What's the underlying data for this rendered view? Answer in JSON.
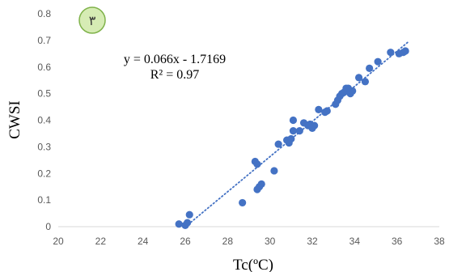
{
  "chart_data": {
    "type": "scatter",
    "badge": "٣",
    "xlabel": "Tc(ºC)",
    "ylabel": "CWSI",
    "equation": "y = 0.066x - 1.7169",
    "r2": "R² = 0.97",
    "xlim": [
      20,
      38
    ],
    "ylim": [
      0,
      0.8
    ],
    "xticks": [
      "20",
      "22",
      "24",
      "26",
      "28",
      "30",
      "32",
      "34",
      "36",
      "38"
    ],
    "yticks": [
      "0",
      "0.1",
      "0.2",
      "0.3",
      "0.4",
      "0.5",
      "0.6",
      "0.7",
      "0.8"
    ],
    "trendline": {
      "slope": 0.066,
      "intercept": -1.7169,
      "x_range": [
        26.0,
        36.5
      ]
    },
    "marker_color": "#4472C4",
    "badge_fill": "#d6ecb4",
    "badge_stroke": "#7fb24a",
    "points": [
      [
        25.7,
        0.01
      ],
      [
        26.0,
        0.005
      ],
      [
        26.1,
        0.015
      ],
      [
        26.2,
        0.045
      ],
      [
        28.7,
        0.09
      ],
      [
        29.3,
        0.245
      ],
      [
        29.4,
        0.235
      ],
      [
        29.4,
        0.14
      ],
      [
        29.5,
        0.15
      ],
      [
        29.6,
        0.16
      ],
      [
        30.2,
        0.21
      ],
      [
        30.4,
        0.31
      ],
      [
        30.8,
        0.325
      ],
      [
        30.9,
        0.315
      ],
      [
        31.0,
        0.33
      ],
      [
        31.1,
        0.36
      ],
      [
        31.1,
        0.4
      ],
      [
        31.4,
        0.36
      ],
      [
        31.6,
        0.39
      ],
      [
        31.8,
        0.38
      ],
      [
        31.9,
        0.385
      ],
      [
        32.0,
        0.37
      ],
      [
        32.1,
        0.38
      ],
      [
        32.3,
        0.44
      ],
      [
        32.6,
        0.43
      ],
      [
        32.7,
        0.435
      ],
      [
        33.1,
        0.46
      ],
      [
        33.2,
        0.475
      ],
      [
        33.3,
        0.49
      ],
      [
        33.4,
        0.5
      ],
      [
        33.5,
        0.505
      ],
      [
        33.6,
        0.52
      ],
      [
        33.7,
        0.52
      ],
      [
        33.8,
        0.5
      ],
      [
        33.9,
        0.51
      ],
      [
        34.2,
        0.56
      ],
      [
        34.5,
        0.545
      ],
      [
        34.7,
        0.595
      ],
      [
        35.1,
        0.62
      ],
      [
        35.7,
        0.655
      ],
      [
        36.1,
        0.65
      ],
      [
        36.3,
        0.655
      ],
      [
        36.4,
        0.66
      ]
    ]
  }
}
